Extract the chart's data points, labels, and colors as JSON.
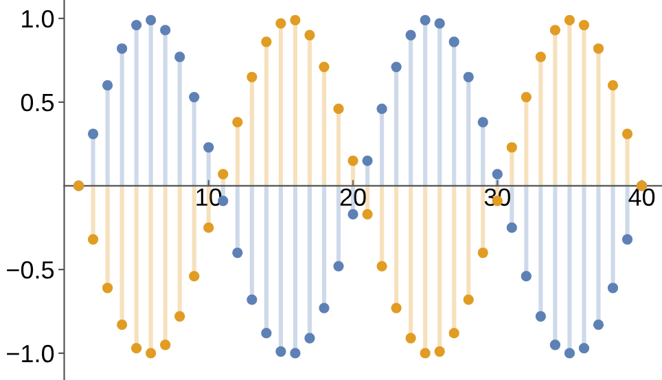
{
  "chart_data": {
    "type": "lollipop",
    "marker": "circle",
    "x": [
      1,
      2,
      3,
      4,
      5,
      6,
      7,
      8,
      9,
      10,
      11,
      12,
      13,
      14,
      15,
      16,
      17,
      18,
      19,
      20,
      21,
      22,
      23,
      24,
      25,
      26,
      27,
      28,
      29,
      30,
      31,
      32,
      33,
      34,
      35,
      36,
      37,
      38,
      39,
      40
    ],
    "series": [
      {
        "color": "#5e81b5",
        "values": [
          0,
          0.31,
          0.6,
          0.82,
          0.96,
          0.99,
          0.93,
          0.77,
          0.53,
          0.23,
          -0.09,
          -0.4,
          -0.68,
          -0.88,
          -0.99,
          -1.0,
          -0.91,
          -0.73,
          -0.48,
          -0.17,
          0.15,
          0.46,
          0.71,
          0.9,
          0.99,
          0.97,
          0.86,
          0.65,
          0.38,
          0.07,
          -0.25,
          -0.54,
          -0.78,
          -0.95,
          -1.0,
          -0.97,
          -0.83,
          -0.61,
          -0.32,
          0
        ]
      },
      {
        "color": "#e19c24",
        "values": [
          0,
          -0.32,
          -0.61,
          -0.83,
          -0.97,
          -1.0,
          -0.95,
          -0.78,
          -0.54,
          -0.25,
          0.07,
          0.38,
          0.65,
          0.86,
          0.97,
          0.99,
          0.9,
          0.71,
          0.46,
          0.15,
          -0.17,
          -0.48,
          -0.73,
          -0.91,
          -1.0,
          -0.99,
          -0.88,
          -0.68,
          -0.4,
          -0.09,
          0.23,
          0.53,
          0.77,
          0.93,
          0.99,
          0.96,
          0.82,
          0.6,
          0.31,
          0
        ]
      }
    ],
    "xlim": [
      0,
      41.4
    ],
    "ylim": [
      -1.16,
      1.11
    ],
    "xticks": [
      10,
      20,
      30,
      40
    ],
    "yticks": [
      {
        "value": -1.0,
        "label": "−1.0"
      },
      {
        "value": -0.5,
        "label": "−0.5"
      },
      {
        "value": 0.5,
        "label": "0.5"
      },
      {
        "value": 1.0,
        "label": "1.0"
      }
    ],
    "grid": false
  }
}
